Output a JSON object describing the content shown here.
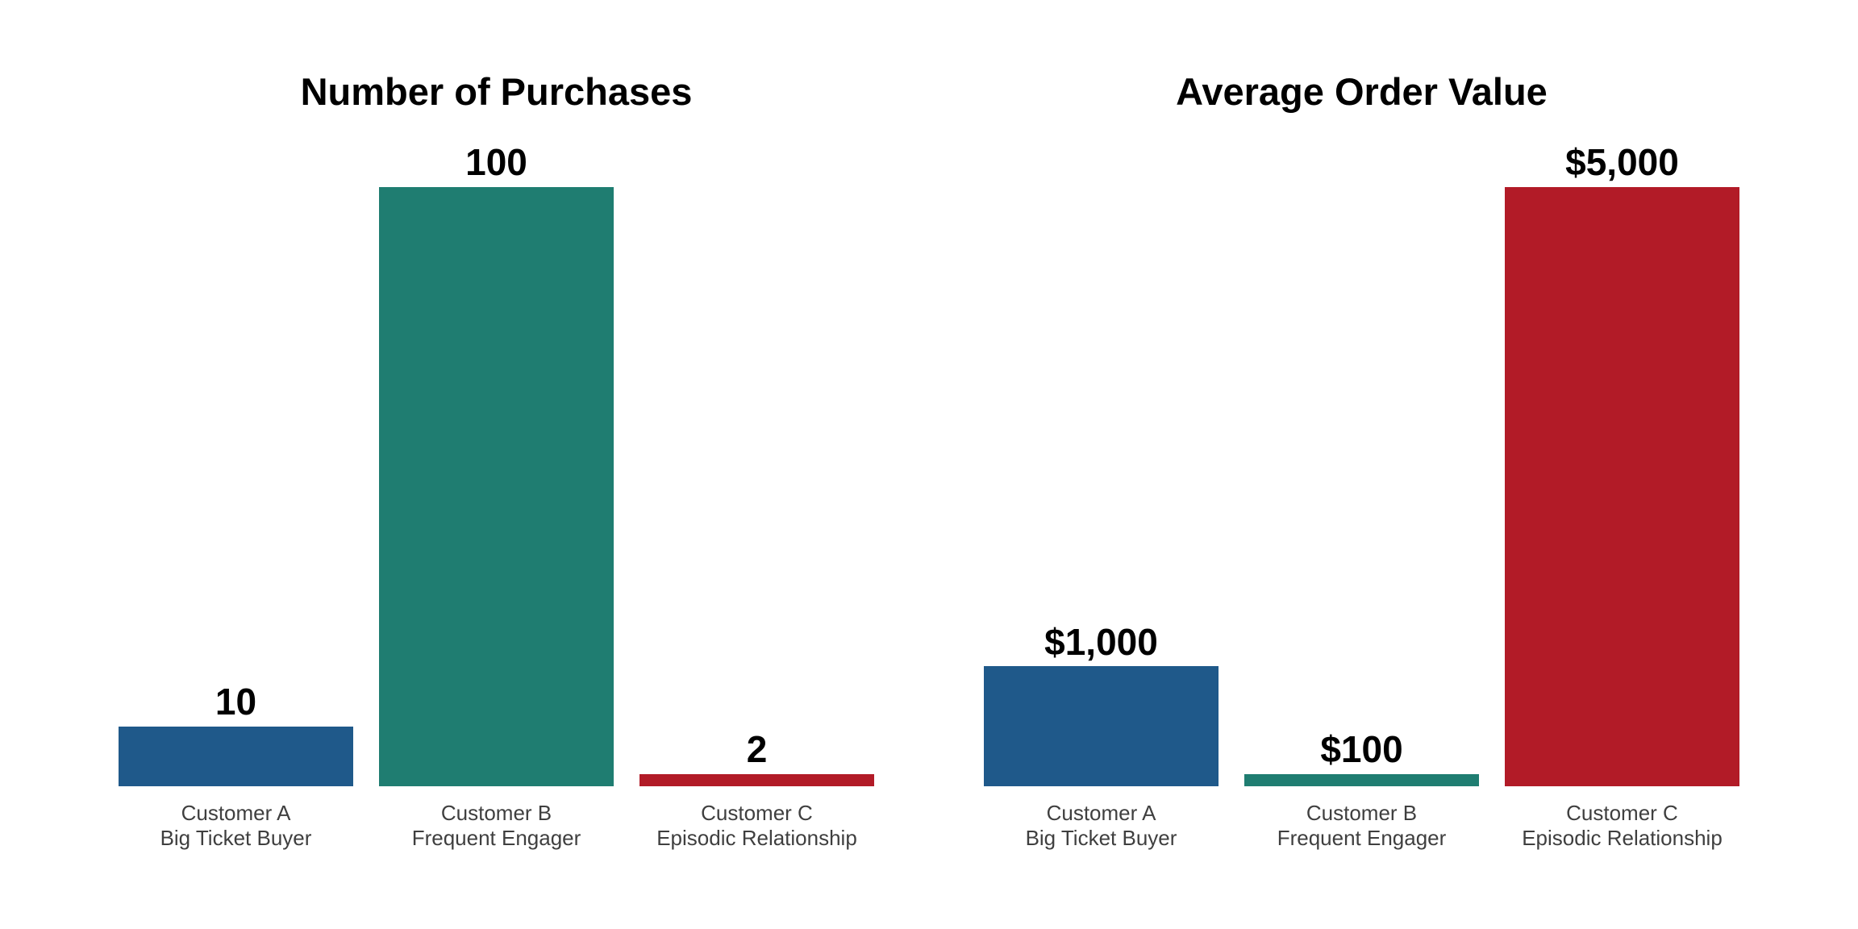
{
  "figure": {
    "background": "#ffffff"
  },
  "chart_data": [
    {
      "type": "bar",
      "title": "Number of Purchases",
      "categories": [
        "Customer A\nBig Ticket Buyer",
        "Customer B\nFrequent Engager",
        "Customer C\nEpisodic Relationship"
      ],
      "values": [
        10,
        100,
        2
      ],
      "value_labels": [
        "10",
        "100",
        "2"
      ],
      "bar_colors": [
        "#1f598a",
        "#1f7d71",
        "#b21b27"
      ],
      "ylim": [
        0,
        100
      ],
      "xlabel": "",
      "ylabel": "",
      "grid": false,
      "legend": "none",
      "axis_lines": false,
      "value_label_color": "#000000",
      "category_label_color": "#3f3f3f"
    },
    {
      "type": "bar",
      "title": "Average Order Value",
      "categories": [
        "Customer A\nBig Ticket Buyer",
        "Customer B\nFrequent Engager",
        "Customer C\nEpisodic Relationship"
      ],
      "values": [
        1000,
        100,
        5000
      ],
      "value_labels": [
        "$1,000",
        "$100",
        "$5,000"
      ],
      "bar_colors": [
        "#1f598a",
        "#1f7d71",
        "#b21b27"
      ],
      "ylim": [
        0,
        5000
      ],
      "xlabel": "",
      "ylabel": "",
      "grid": false,
      "legend": "none",
      "axis_lines": false,
      "value_label_color": "#000000",
      "category_label_color": "#3f3f3f"
    }
  ]
}
